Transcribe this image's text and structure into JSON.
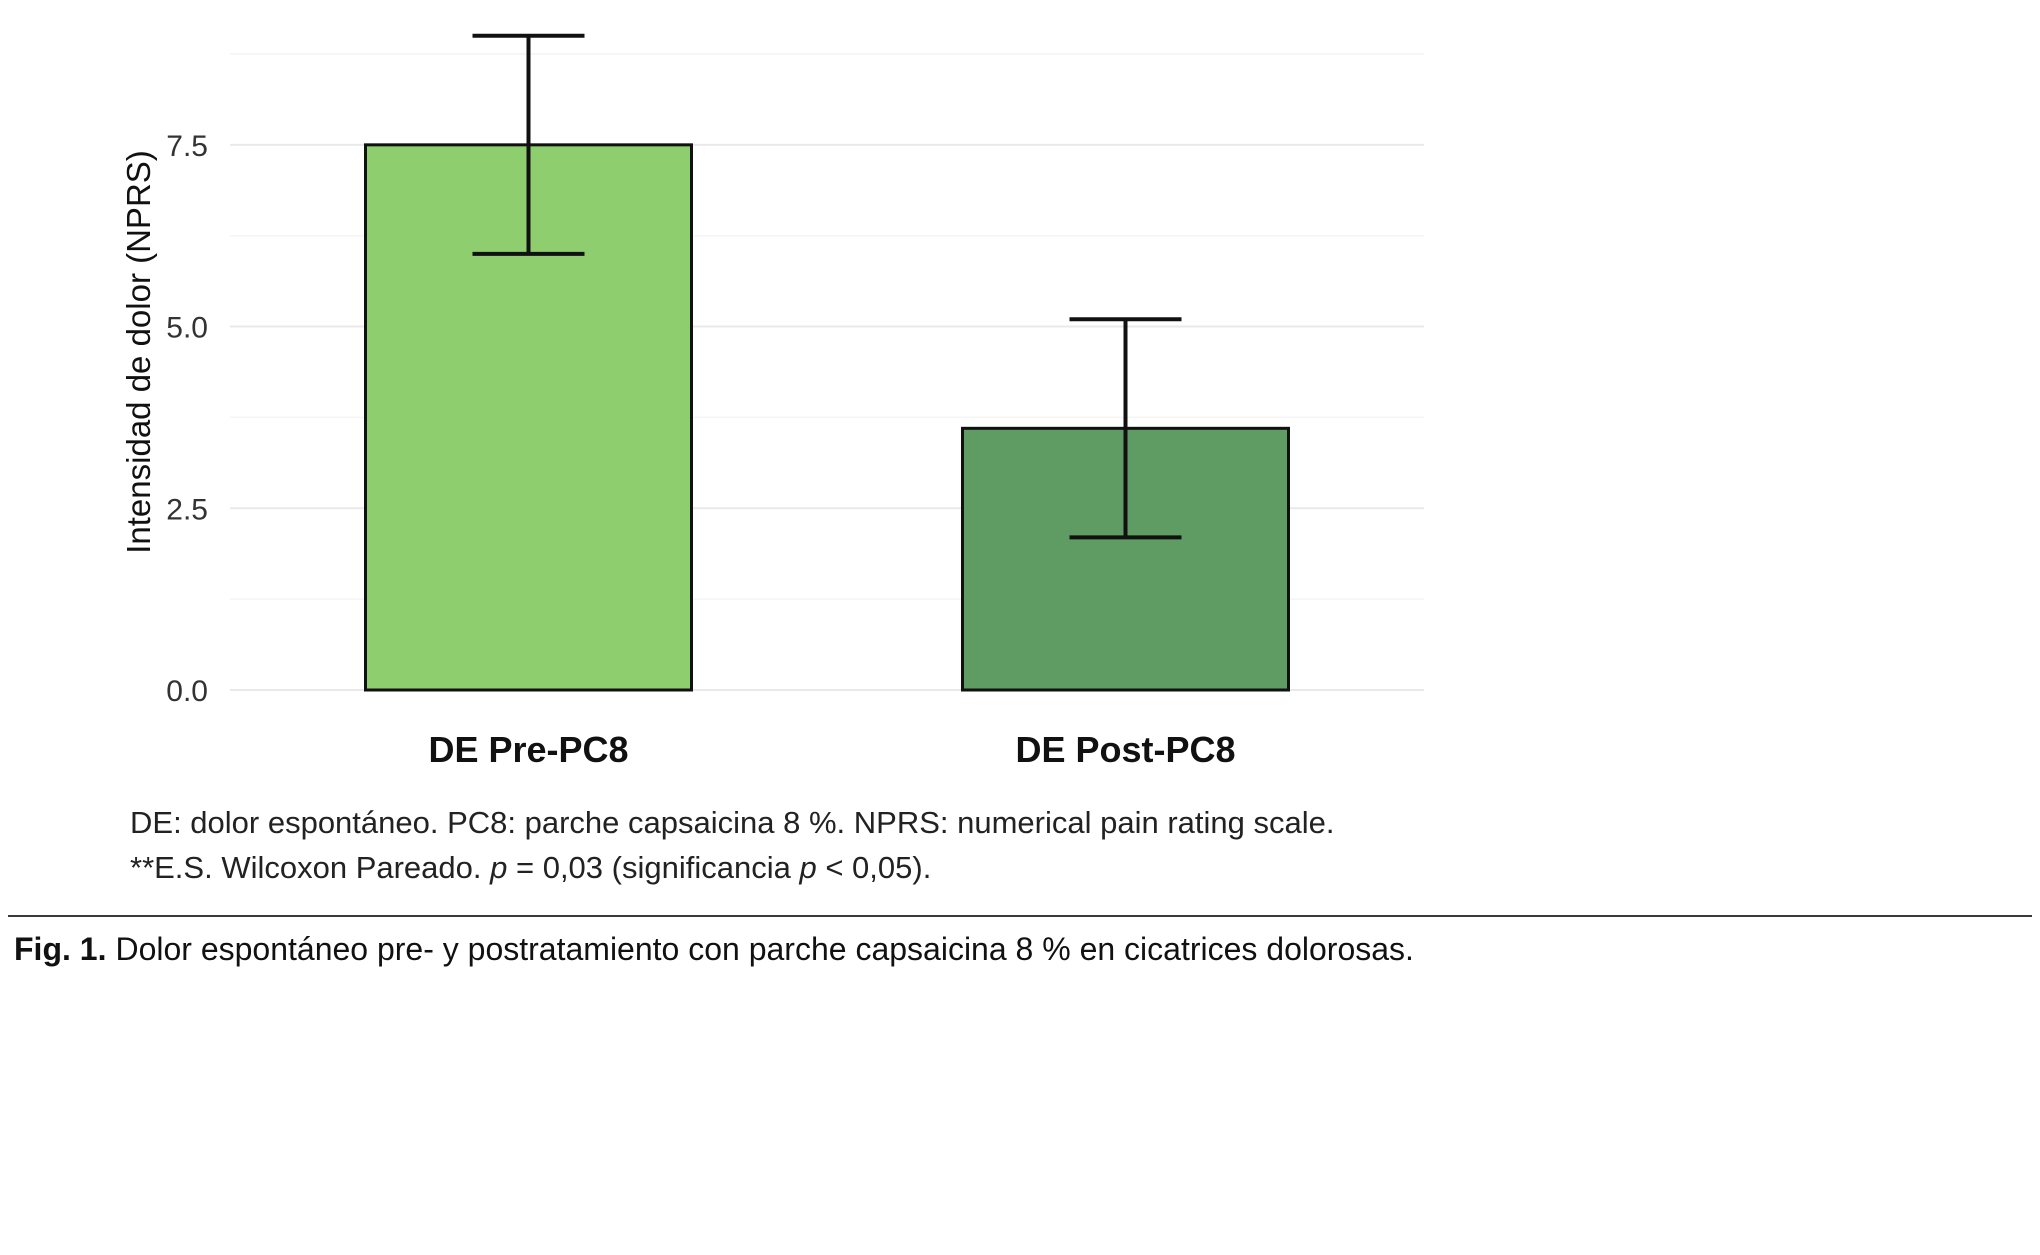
{
  "chart_data": {
    "type": "bar",
    "categories": [
      "DE Pre-PC8",
      "DE Post-PC8"
    ],
    "values": [
      7.5,
      3.6
    ],
    "error_low": [
      6.0,
      2.1
    ],
    "error_high": [
      9.0,
      5.1
    ],
    "bar_colors": [
      "#8FCE6F",
      "#5E9C63"
    ],
    "bar_edge_color": "#111111",
    "grid_color": "#e9e9e9",
    "minor_grid_color": "#f4f4f4",
    "ylabel": "Intensidad de dolor (NPRS)",
    "yticks": [
      0.0,
      2.5,
      5.0,
      7.5
    ],
    "ytick_labels": [
      "0.0",
      "2.5",
      "5.0",
      "7.5"
    ],
    "ylim": [
      0,
      9.3
    ],
    "grid": true,
    "legend": "none"
  },
  "notes": {
    "line1": "DE: dolor espontáneo. PC8: parche capsaicina 8 %. NPRS: numerical pain rating scale.",
    "line2_segments": [
      {
        "text": "**E.S. Wilcoxon Pareado. ",
        "style": "normal"
      },
      {
        "text": "p",
        "style": "italic"
      },
      {
        "text": " = 0,03 (significancia ",
        "style": "normal"
      },
      {
        "text": "p",
        "style": "italic"
      },
      {
        "text": " < 0,05).",
        "style": "normal"
      }
    ]
  },
  "caption": {
    "label": "Fig. 1.",
    "text": "Dolor espontáneo pre- y postratamiento con parche capsaicina 8 % en cicatrices dolorosas."
  }
}
